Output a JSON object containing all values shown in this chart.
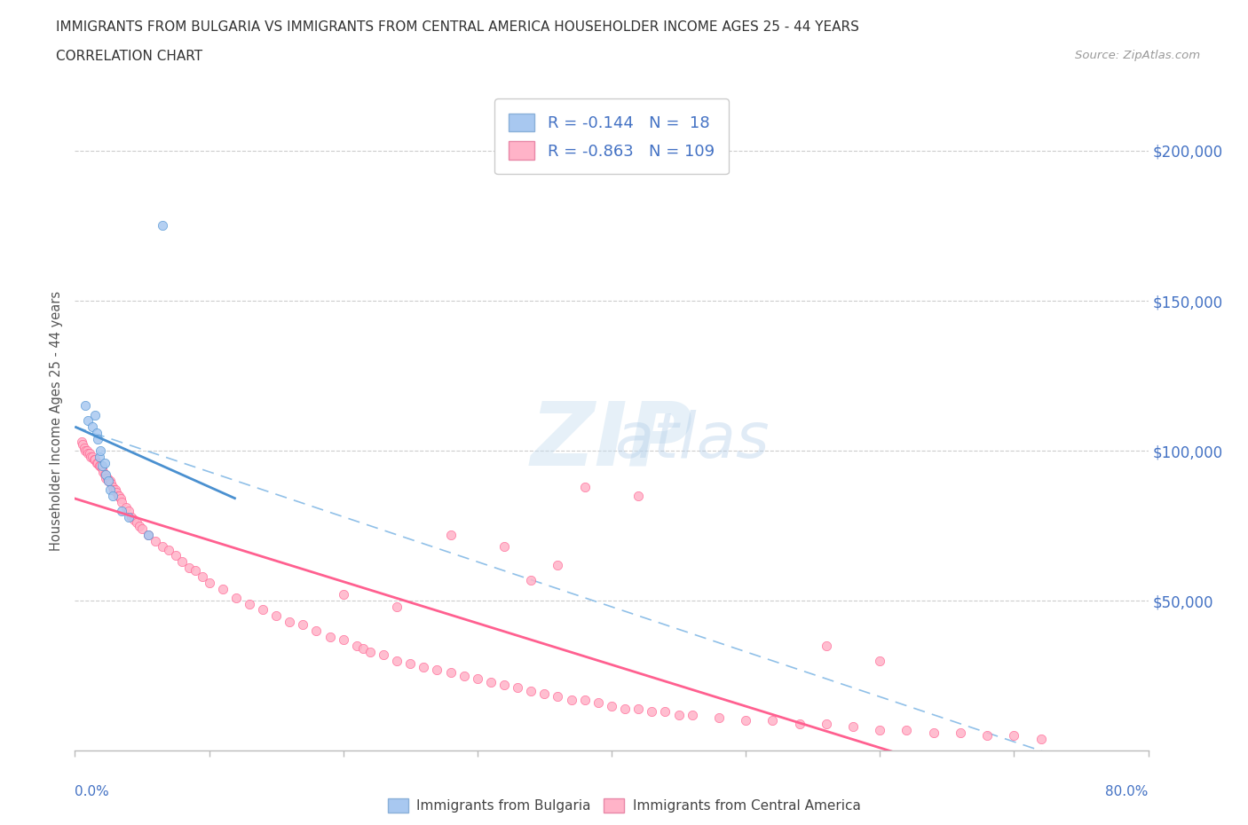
{
  "title_line1": "IMMIGRANTS FROM BULGARIA VS IMMIGRANTS FROM CENTRAL AMERICA HOUSEHOLDER INCOME AGES 25 - 44 YEARS",
  "title_line2": "CORRELATION CHART",
  "source_text": "Source: ZipAtlas.com",
  "ylabel": "Householder Income Ages 25 - 44 years",
  "r_bulgaria": -0.144,
  "n_bulgaria": 18,
  "r_central_america": -0.863,
  "n_central_america": 109,
  "ytick_labels": [
    "$50,000",
    "$100,000",
    "$150,000",
    "$200,000"
  ],
  "ytick_values": [
    50000,
    100000,
    150000,
    200000
  ],
  "color_bulgaria": "#a8c8f0",
  "color_central_america": "#ffb3c8",
  "line_color_bulgaria": "#4a90d0",
  "line_color_central_america": "#ff6090",
  "dashed_line_color": "#90c0e8",
  "xlim": [
    0.0,
    0.8
  ],
  "ylim": [
    0,
    220000
  ],
  "legend_r1": "R = -0.144",
  "legend_n1": "N =  18",
  "legend_r2": "R = -0.863",
  "legend_n2": "N = 109",
  "bulgaria_x": [
    0.008,
    0.01,
    0.013,
    0.015,
    0.016,
    0.017,
    0.018,
    0.019,
    0.02,
    0.022,
    0.023,
    0.025,
    0.026,
    0.028,
    0.035,
    0.04,
    0.055,
    0.065
  ],
  "bulgaria_y": [
    115000,
    110000,
    108000,
    112000,
    106000,
    104000,
    98000,
    100000,
    95000,
    96000,
    92000,
    90000,
    87000,
    85000,
    80000,
    78000,
    72000,
    175000
  ],
  "ca_x": [
    0.005,
    0.006,
    0.007,
    0.008,
    0.009,
    0.01,
    0.011,
    0.012,
    0.013,
    0.014,
    0.015,
    0.016,
    0.017,
    0.018,
    0.019,
    0.02,
    0.021,
    0.022,
    0.023,
    0.024,
    0.025,
    0.026,
    0.027,
    0.028,
    0.029,
    0.03,
    0.031,
    0.032,
    0.033,
    0.034,
    0.035,
    0.038,
    0.04,
    0.042,
    0.044,
    0.046,
    0.048,
    0.05,
    0.055,
    0.06,
    0.065,
    0.07,
    0.075,
    0.08,
    0.085,
    0.09,
    0.095,
    0.1,
    0.11,
    0.12,
    0.13,
    0.14,
    0.15,
    0.16,
    0.17,
    0.18,
    0.19,
    0.2,
    0.21,
    0.215,
    0.22,
    0.23,
    0.24,
    0.25,
    0.26,
    0.27,
    0.28,
    0.29,
    0.3,
    0.31,
    0.32,
    0.33,
    0.34,
    0.35,
    0.36,
    0.37,
    0.38,
    0.39,
    0.4,
    0.41,
    0.42,
    0.43,
    0.44,
    0.45,
    0.46,
    0.48,
    0.5,
    0.52,
    0.54,
    0.56,
    0.58,
    0.6,
    0.62,
    0.64,
    0.66,
    0.68,
    0.7,
    0.72,
    0.38,
    0.42,
    0.28,
    0.32,
    0.2,
    0.24,
    0.56,
    0.6,
    0.34,
    0.36
  ],
  "ca_y": [
    103000,
    102000,
    101000,
    100000,
    100000,
    99000,
    99000,
    98000,
    98000,
    97000,
    97000,
    96000,
    96000,
    95000,
    95000,
    94000,
    93000,
    92000,
    91000,
    91000,
    90000,
    90000,
    89000,
    88000,
    87000,
    87000,
    86000,
    85000,
    85000,
    84000,
    83000,
    81000,
    80000,
    78000,
    77000,
    76000,
    75000,
    74000,
    72000,
    70000,
    68000,
    67000,
    65000,
    63000,
    61000,
    60000,
    58000,
    56000,
    54000,
    51000,
    49000,
    47000,
    45000,
    43000,
    42000,
    40000,
    38000,
    37000,
    35000,
    34000,
    33000,
    32000,
    30000,
    29000,
    28000,
    27000,
    26000,
    25000,
    24000,
    23000,
    22000,
    21000,
    20000,
    19000,
    18000,
    17000,
    17000,
    16000,
    15000,
    14000,
    14000,
    13000,
    13000,
    12000,
    12000,
    11000,
    10000,
    10000,
    9000,
    9000,
    8000,
    7000,
    7000,
    6000,
    6000,
    5000,
    5000,
    4000,
    88000,
    85000,
    72000,
    68000,
    52000,
    48000,
    35000,
    30000,
    57000,
    62000
  ]
}
